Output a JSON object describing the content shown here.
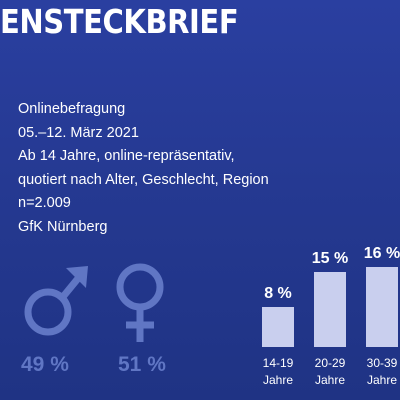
{
  "header": {
    "title": "ENSTECKBRIEF"
  },
  "study_info": {
    "lines": [
      "Onlinebefragung",
      "05.–12. März 2021",
      "Ab 14 Jahre, online-repräsentativ,",
      "quotiert nach Alter, Geschlecht, Region",
      "n=2.009",
      "GfK Nürnberg"
    ]
  },
  "gender": {
    "male": {
      "icon": "male-symbol-icon",
      "label": "49 %"
    },
    "female": {
      "icon": "female-symbol-icon",
      "label": "51 %"
    },
    "color": "#6076c4"
  },
  "chart_data": {
    "type": "bar",
    "categories": [
      "14-19 Jahre",
      "20-29 Jahre",
      "30-39 Jahre"
    ],
    "tick_lines": [
      [
        "14-19",
        "Jahre"
      ],
      [
        "20-29",
        "Jahre"
      ],
      [
        "30-39",
        "Jahre"
      ]
    ],
    "values": [
      8,
      15,
      16
    ],
    "data_labels": [
      "8 %",
      "15 %",
      "16 %"
    ],
    "unit": "%",
    "ylim": [
      0,
      16
    ],
    "bar_color": "#c9cfee",
    "grid": false,
    "title": "",
    "xlabel": "",
    "ylabel": ""
  }
}
